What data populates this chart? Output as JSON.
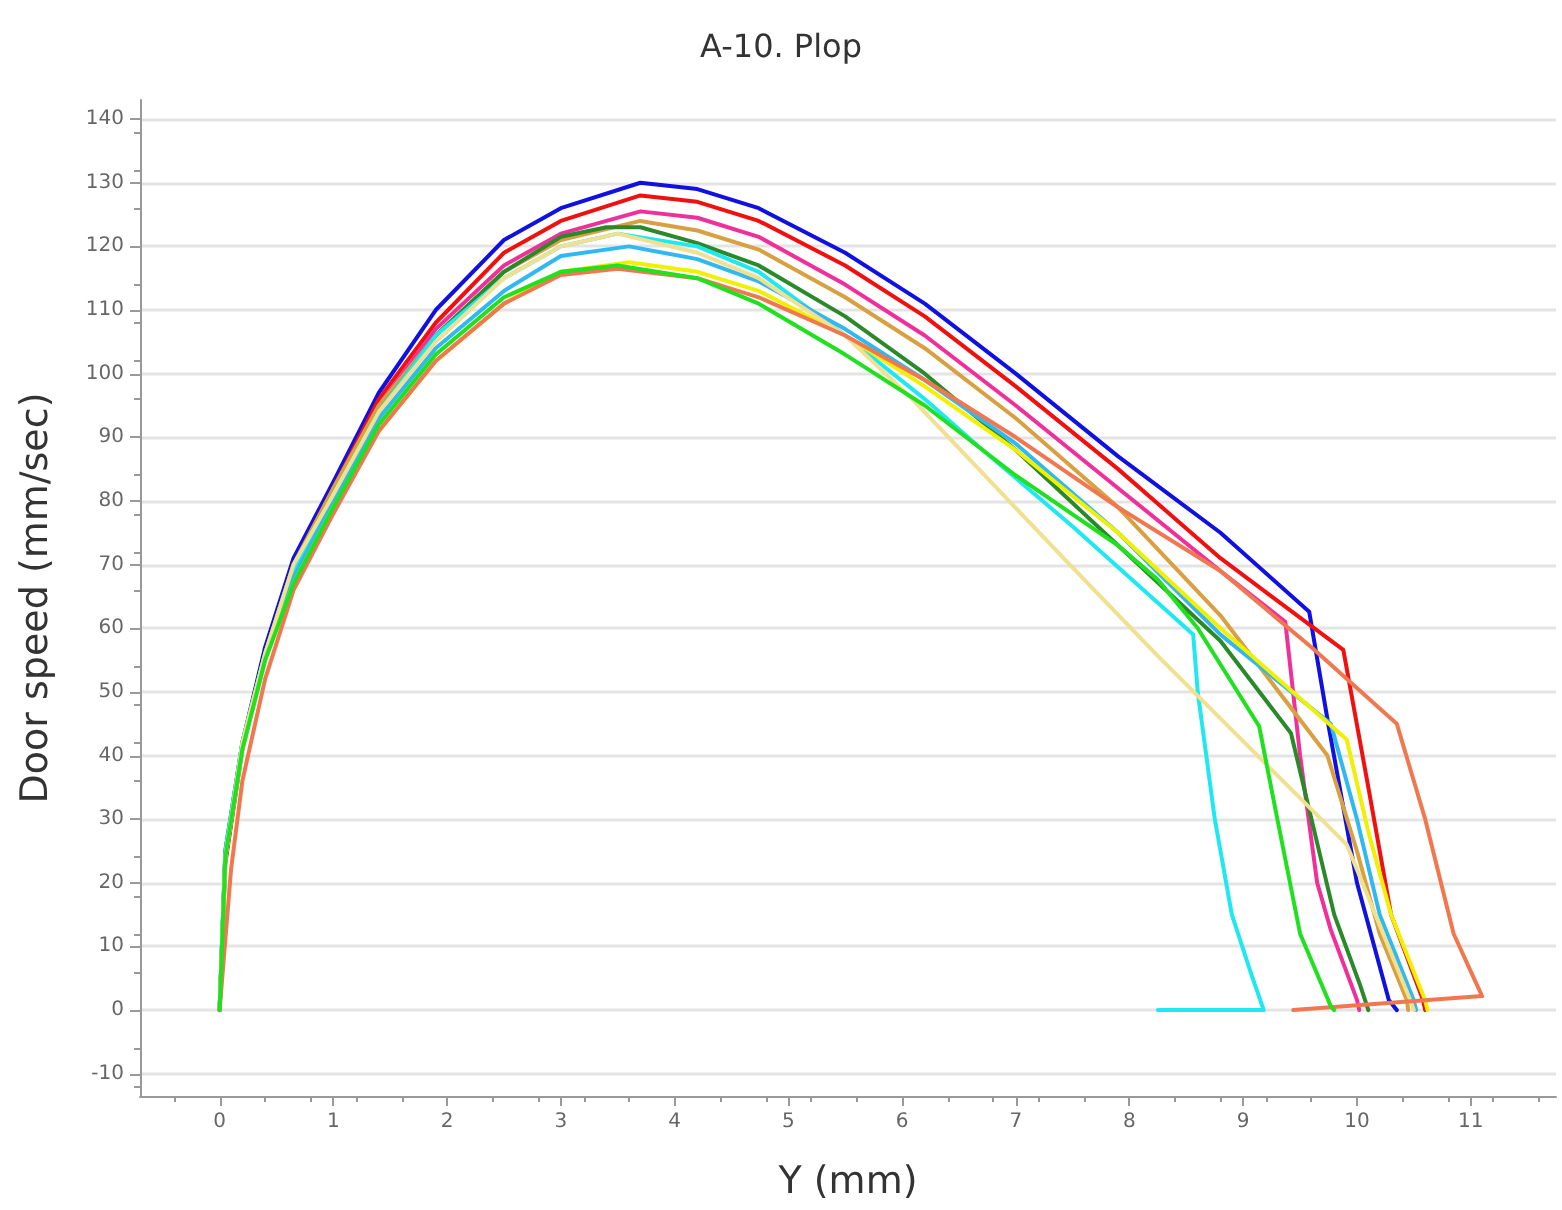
{
  "chart_data": {
    "type": "line",
    "title": "A-10. Plop",
    "xlabel": "Y (mm)",
    "ylabel": "Door speed (mm/sec)",
    "xlim": [
      -0.7,
      11.75
    ],
    "ylim": [
      -13.5,
      143
    ],
    "xticks": [
      0,
      1,
      2,
      3,
      4,
      5,
      6,
      7,
      8,
      9,
      10,
      11
    ],
    "yticks": [
      -10,
      0,
      10,
      20,
      30,
      40,
      50,
      60,
      70,
      80,
      90,
      100,
      110,
      120,
      130,
      140
    ],
    "grid": "y",
    "marker": "none",
    "line_style": "solid",
    "series": [
      {
        "color": "#1010e0",
        "x": [
          0,
          0.05,
          0.2,
          0.4,
          0.65,
          1,
          1.4,
          1.9,
          2.5,
          3,
          3.7,
          4.2,
          4.74,
          5.5,
          6.2,
          7,
          7.9,
          8.8,
          9.58,
          9.75,
          10,
          10.28,
          10.35
        ],
        "values": [
          0,
          25,
          42,
          57,
          71,
          83,
          97,
          110,
          121,
          126,
          130,
          129,
          126,
          119,
          111,
          100,
          87,
          75,
          62.6,
          44.7,
          20,
          1.6,
          0
        ]
      },
      {
        "color": "#f01010",
        "x": [
          0,
          0.05,
          0.2,
          0.4,
          0.65,
          1,
          1.4,
          1.9,
          2.5,
          3,
          3.7,
          4.2,
          4.74,
          5.5,
          6.2,
          7,
          7.9,
          8.8,
          9.88,
          10.1,
          10.3,
          10.58,
          10.6
        ],
        "values": [
          0,
          23,
          41,
          56,
          70,
          82,
          96,
          108,
          119,
          124,
          128,
          127,
          124,
          117,
          109,
          98,
          85,
          71,
          56.6,
          35,
          15,
          1.6,
          0
        ]
      },
      {
        "color": "#f0309a",
        "x": [
          1,
          1.4,
          1.9,
          2.5,
          3,
          3.7,
          4.2,
          4.74,
          5.5,
          6.2,
          7,
          7.9,
          8.8,
          9.37,
          9.5,
          9.65,
          9.77,
          10,
          10.02
        ],
        "values": [
          82,
          95,
          107,
          117,
          122,
          125.5,
          124.5,
          121.5,
          114,
          106,
          95,
          82,
          69,
          61,
          40,
          20,
          12.6,
          1.6,
          0
        ]
      },
      {
        "color": "#d8a040",
        "x": [
          0,
          0.05,
          0.2,
          0.4,
          0.65,
          1,
          1.4,
          1.9,
          2.5,
          3,
          3.7,
          4.2,
          4.74,
          5.5,
          6.2,
          7,
          7.9,
          8.8,
          9.74,
          10,
          10.2,
          10.44,
          10.45
        ],
        "values": [
          0,
          24,
          42,
          56,
          70,
          82,
          95,
          106,
          116,
          121,
          124,
          122.5,
          119.5,
          112,
          104,
          93,
          79,
          62,
          40,
          25,
          12,
          1.5,
          0
        ]
      },
      {
        "color": "#2a8a2a",
        "x": [
          0,
          0.05,
          0.2,
          0.4,
          0.65,
          1,
          1.4,
          1.9,
          2.5,
          3,
          3.4,
          3.7,
          4.2,
          4.74,
          5.5,
          6.2,
          7,
          7.9,
          8.8,
          9.42,
          9.6,
          9.8,
          10.03,
          10.1
        ],
        "values": [
          0,
          24,
          42,
          56,
          70,
          81,
          94,
          106,
          116,
          121.5,
          123,
          123,
          120.5,
          117,
          109,
          100,
          88,
          73,
          58,
          43.5,
          30,
          15,
          3.8,
          0
        ]
      },
      {
        "color": "#20e8f0",
        "x": [
          0,
          0.05,
          0.2,
          0.4,
          0.65,
          1,
          1.4,
          1.9,
          2.5,
          3,
          3.5,
          4.2,
          4.74,
          5.5,
          6.2,
          6.67,
          7.5,
          8.56,
          8.6,
          8.75,
          8.9,
          9.07,
          9.18,
          8.25
        ],
        "values": [
          0,
          25,
          42,
          56,
          69,
          81,
          94,
          106,
          115,
          120,
          122,
          120,
          116,
          106,
          96,
          88.6,
          76,
          59,
          50,
          30,
          15,
          5.7,
          0,
          0
        ]
      },
      {
        "color": "#30b8f0",
        "x": [
          0,
          0.05,
          0.2,
          0.4,
          0.65,
          1,
          1.4,
          1.9,
          2.5,
          3,
          3.6,
          4.2,
          4.74,
          5.5,
          6.2,
          7,
          7.9,
          8.8,
          9.77,
          10,
          10.2,
          10.5,
          10.52
        ],
        "values": [
          0,
          24,
          41,
          55,
          68,
          80,
          93,
          104,
          113,
          118.5,
          120,
          118,
          114.5,
          107,
          99,
          89,
          75,
          59,
          45,
          30,
          15,
          1.5,
          0
        ]
      },
      {
        "color": "#f0f000",
        "x": [
          0,
          0.05,
          0.2,
          0.4,
          0.65,
          1,
          1.4,
          1.9,
          2.5,
          3,
          3.6,
          4.2,
          4.74,
          5.5,
          6.2,
          7,
          7.9,
          8.8,
          9.91,
          10.1,
          10.3,
          10.6,
          10.62
        ],
        "values": [
          0,
          24,
          41,
          55,
          67,
          79,
          91,
          102,
          111,
          116,
          117.5,
          116,
          113,
          106,
          98,
          88,
          75,
          60,
          42.5,
          28,
          15,
          1.5,
          0
        ]
      },
      {
        "color": "#f0e090",
        "x": [
          0,
          0.05,
          0.2,
          0.4,
          0.65,
          1,
          1.4,
          1.9,
          2.5,
          3,
          3.5,
          4.2,
          4.74,
          5.5,
          6.09,
          7.42,
          8.25,
          9.91,
          10.47,
          10.5
        ],
        "values": [
          0,
          24,
          42,
          56,
          70,
          81,
          94,
          105,
          115,
          120,
          122,
          119,
          115,
          106,
          96,
          71,
          55.6,
          26,
          1.5,
          0
        ]
      },
      {
        "color": "#f07850",
        "x": [
          0,
          0.1,
          0.2,
          0.4,
          0.65,
          1,
          1.4,
          1.9,
          2.5,
          3,
          3.5,
          4.2,
          4.74,
          5.5,
          6.2,
          7,
          7.9,
          8.8,
          9.6,
          10.35,
          10.6,
          10.85,
          11.1,
          9.44
        ],
        "values": [
          0,
          22,
          36,
          52,
          66,
          78,
          91,
          102,
          111,
          115.5,
          116.5,
          115,
          112,
          106,
          99,
          90,
          79,
          69,
          57,
          45,
          30,
          12,
          2.2,
          0
        ]
      },
      {
        "color": "#20e020",
        "x": [
          0,
          0.05,
          0.2,
          0.4,
          0.65,
          1,
          1.4,
          1.9,
          2.5,
          3,
          3.5,
          4.2,
          4.74,
          5.5,
          6.2,
          7,
          7.9,
          8.25,
          8.6,
          9.14,
          9.3,
          9.5,
          9.77,
          9.8
        ],
        "values": [
          0,
          24,
          41,
          55,
          67,
          79,
          92,
          103,
          112,
          116,
          117,
          115,
          111,
          103,
          95,
          84,
          73,
          67.6,
          60,
          44.6,
          30,
          12,
          0.6,
          0
        ]
      }
    ]
  }
}
